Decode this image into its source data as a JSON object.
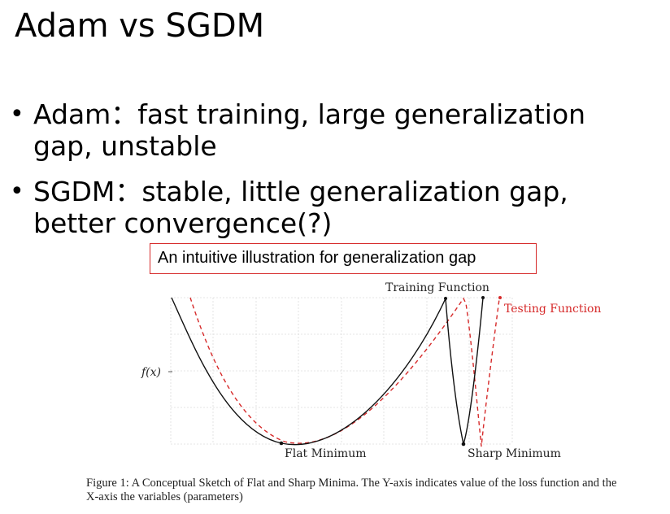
{
  "slide": {
    "title": "Adam vs SGDM",
    "bullets": [
      "Adam：fast training, large generalization gap, unstable",
      "SGDM：stable, little generalization gap, better convergence(?)"
    ],
    "bullet_marker": "•"
  },
  "callout": {
    "text": "An intuitive illustration for generalization gap",
    "border_color": "#d62a2a"
  },
  "figure": {
    "y_label": "f(x)",
    "labels": {
      "training_function": "Training Function",
      "testing_function": "Testing Function",
      "flat_minimum": "Flat Minimum",
      "sharp_minimum": "Sharp Minimum"
    },
    "colors": {
      "training_curve": "#111111",
      "testing_curve": "#d62a2a",
      "grid": "#dcdcdc"
    },
    "caption": "Figure 1:  A Conceptual Sketch of Flat and Sharp Minima.  The Y-axis indicates value of the loss function and the X-axis the variables (parameters)"
  }
}
